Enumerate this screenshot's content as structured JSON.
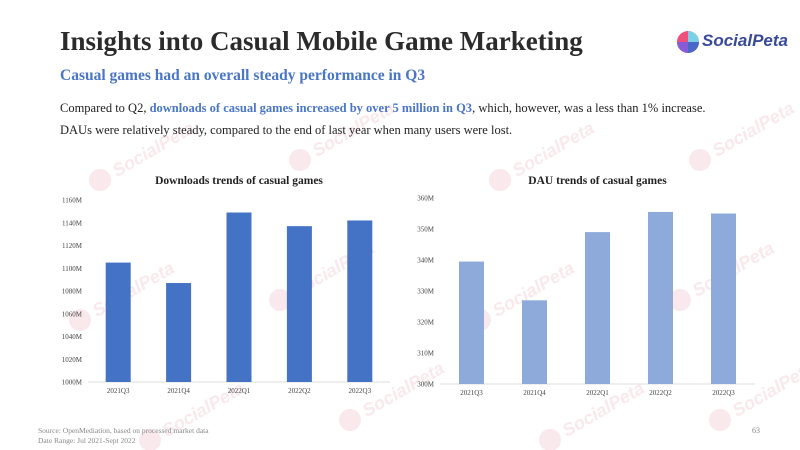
{
  "slide": {
    "title": "Insights into Casual Mobile Game Marketing",
    "subtitle": "Casual games had an overall steady performance in Q3",
    "paragraph1": {
      "before": "Compared to Q2, ",
      "highlight": "downloads of casual games increased by over 5 million in Q3",
      "after": ", which, however, was a less than 1% increase."
    },
    "paragraph2": "DAUs were relatively steady, compared to the end of last year when many users were lost.",
    "logo_text": "SocialPeta",
    "source_line": "Source: OpenMediation, based on processed market data",
    "date_line": "Date Range: Jul 2021-Sept 2022",
    "page_number": "63",
    "watermark_text": "SocialPeta"
  },
  "colors": {
    "accent": "#4a76c6",
    "downloads_bar": "#4472c4",
    "dau_bar": "#8eaadb"
  },
  "chart_data": [
    {
      "type": "bar",
      "title": "Downloads trends of casual games",
      "categories": [
        "2021Q3",
        "2021Q4",
        "2022Q1",
        "2022Q2",
        "2022Q3"
      ],
      "values": [
        1105,
        1087,
        1149,
        1137,
        1142
      ],
      "unit": "M",
      "ylim": [
        1000,
        1160
      ],
      "yticks": [
        "1000M",
        "1020M",
        "1040M",
        "1060M",
        "1080M",
        "1100M",
        "1120M",
        "1140M",
        "1160M"
      ],
      "xlabel": "",
      "ylabel": "",
      "grid": false
    },
    {
      "type": "bar",
      "title": "DAU trends of casual games",
      "categories": [
        "2021Q3",
        "2021Q4",
        "2022Q1",
        "2022Q2",
        "2022Q3"
      ],
      "values": [
        339.5,
        327,
        349,
        355.5,
        355
      ],
      "unit": "M",
      "ylim": [
        300,
        360
      ],
      "yticks": [
        "300M",
        "310M",
        "320M",
        "330M",
        "340M",
        "350M",
        "360M"
      ],
      "xlabel": "",
      "ylabel": "",
      "grid": false
    }
  ]
}
